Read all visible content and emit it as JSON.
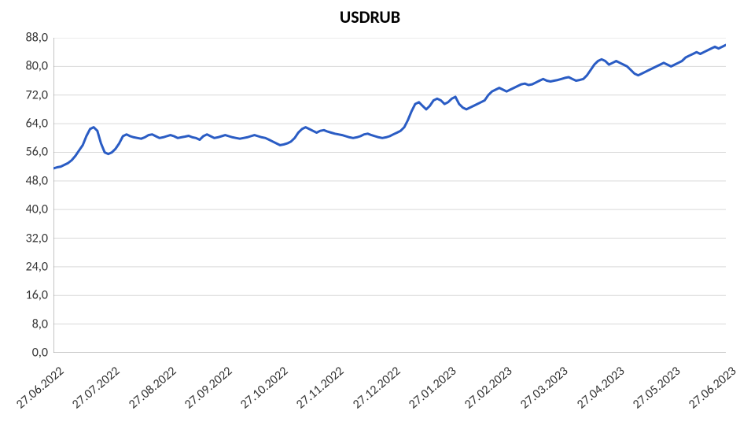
{
  "chart": {
    "type": "line",
    "title": "USDRUB",
    "title_fontsize": 22,
    "title_fontweight": 700,
    "background_color": "#ffffff",
    "grid_color": "#d9d9d9",
    "axis_color": "#888888",
    "text_color": "#333333",
    "tick_fontsize": 16,
    "ylim": [
      0,
      88
    ],
    "ytick_step": 8,
    "yticks": [
      "0,0",
      "8,0",
      "16,0",
      "24,0",
      "32,0",
      "40,0",
      "48,0",
      "56,0",
      "64,0",
      "72,0",
      "80,0",
      "88,0"
    ],
    "xlabels": [
      "27.06.2022",
      "27.07.2022",
      "27.08.2022",
      "27.09.2022",
      "27.10.2022",
      "27.11.2022",
      "27.12.2022",
      "27.01.2023",
      "27.02.2023",
      "27.03.2023",
      "27.04.2023",
      "27.05.2023",
      "27.06.2023"
    ],
    "xlabel_rotation_deg": -40,
    "series": [
      {
        "name": "USDRUB",
        "color": "#2a5cc4",
        "line_width": 3,
        "values": [
          51.5,
          51.8,
          52.0,
          52.5,
          53.0,
          53.8,
          55.0,
          56.5,
          58.0,
          60.5,
          62.5,
          63.0,
          62.0,
          58.5,
          56.0,
          55.5,
          56.0,
          57.0,
          58.5,
          60.5,
          61.0,
          60.5,
          60.2,
          60.0,
          59.8,
          60.2,
          60.8,
          61.0,
          60.5,
          60.0,
          60.2,
          60.5,
          60.8,
          60.5,
          60.0,
          60.2,
          60.4,
          60.6,
          60.2,
          60.0,
          59.5,
          60.5,
          61.0,
          60.5,
          60.0,
          60.2,
          60.5,
          60.8,
          60.5,
          60.2,
          60.0,
          59.8,
          60.0,
          60.2,
          60.5,
          60.8,
          60.5,
          60.2,
          60.0,
          59.5,
          59.0,
          58.5,
          58.0,
          58.2,
          58.5,
          59.0,
          60.0,
          61.5,
          62.5,
          63.0,
          62.5,
          62.0,
          61.5,
          62.0,
          62.2,
          61.8,
          61.5,
          61.2,
          61.0,
          60.8,
          60.5,
          60.2,
          60.0,
          60.2,
          60.5,
          61.0,
          61.2,
          60.8,
          60.5,
          60.2,
          60.0,
          60.2,
          60.5,
          61.0,
          61.5,
          62.0,
          63.0,
          65.0,
          67.5,
          69.5,
          70.0,
          69.0,
          68.0,
          69.0,
          70.5,
          71.0,
          70.5,
          69.5,
          70.0,
          71.0,
          71.5,
          69.5,
          68.5,
          68.0,
          68.5,
          69.0,
          69.5,
          70.0,
          70.5,
          72.0,
          73.0,
          73.5,
          74.0,
          73.5,
          73.0,
          73.5,
          74.0,
          74.5,
          75.0,
          75.2,
          74.8,
          75.0,
          75.5,
          76.0,
          76.5,
          76.0,
          75.8,
          76.0,
          76.2,
          76.5,
          76.8,
          77.0,
          76.5,
          76.0,
          76.2,
          76.5,
          77.5,
          79.0,
          80.5,
          81.5,
          82.0,
          81.5,
          80.5,
          81.0,
          81.5,
          81.0,
          80.5,
          80.0,
          79.0,
          78.0,
          77.5,
          78.0,
          78.5,
          79.0,
          79.5,
          80.0,
          80.5,
          81.0,
          80.5,
          80.0,
          80.5,
          81.0,
          81.5,
          82.5,
          83.0,
          83.5,
          84.0,
          83.5,
          84.0,
          84.5,
          85.0,
          85.5,
          85.0,
          85.5,
          86.0
        ]
      }
    ]
  }
}
